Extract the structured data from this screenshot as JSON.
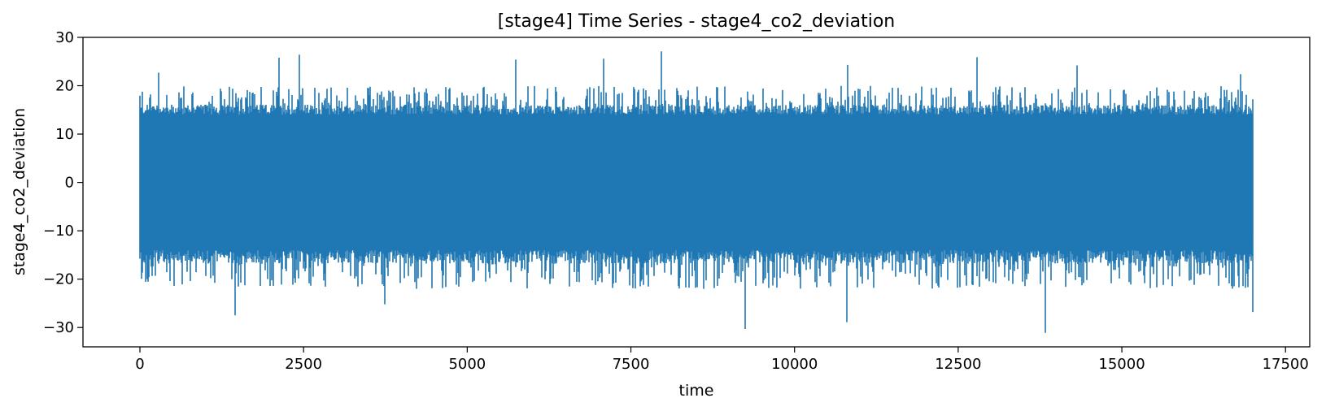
{
  "chart_data": {
    "type": "line",
    "title": "[stage4] Time Series - stage4_co2_deviation",
    "xlabel": "time",
    "ylabel": "stage4_co2_deviation",
    "xlim": [
      -870,
      17870
    ],
    "ylim": [
      -34,
      30
    ],
    "xticks": [
      0,
      2500,
      5000,
      7500,
      10000,
      12500,
      15000,
      17500
    ],
    "xtick_labels": [
      "0",
      "2500",
      "5000",
      "7500",
      "10000",
      "12500",
      "15000",
      "17500"
    ],
    "yticks": [
      -30,
      -20,
      -10,
      0,
      10,
      20,
      30
    ],
    "ytick_labels": [
      "−30",
      "−20",
      "−10",
      "0",
      "10",
      "20",
      "30"
    ],
    "grid": false,
    "legend": "none",
    "line_color": "#1f77b4",
    "series": [
      {
        "x_start": 0,
        "x_end": 17000,
        "n_points": 17001,
        "band_low": -14,
        "band_high": 14,
        "typical_min": -22,
        "typical_max": 20,
        "peaks": [
          {
            "x": 290,
            "y": 22.7
          },
          {
            "x": 2130,
            "y": 25.8
          },
          {
            "x": 2430,
            "y": 26.4
          },
          {
            "x": 5740,
            "y": 25.4
          },
          {
            "x": 7080,
            "y": 25.6
          },
          {
            "x": 7960,
            "y": 27.1
          },
          {
            "x": 10810,
            "y": 24.3
          },
          {
            "x": 12790,
            "y": 25.9
          },
          {
            "x": 14310,
            "y": 24.2
          },
          {
            "x": 16810,
            "y": 22.4
          }
        ],
        "troughs": [
          {
            "x": 1460,
            "y": -27.5
          },
          {
            "x": 3740,
            "y": -25.2
          },
          {
            "x": 9250,
            "y": -30.3
          },
          {
            "x": 10800,
            "y": -28.9
          },
          {
            "x": 13830,
            "y": -31.1
          },
          {
            "x": 17000,
            "y": -26.8
          }
        ]
      }
    ]
  }
}
